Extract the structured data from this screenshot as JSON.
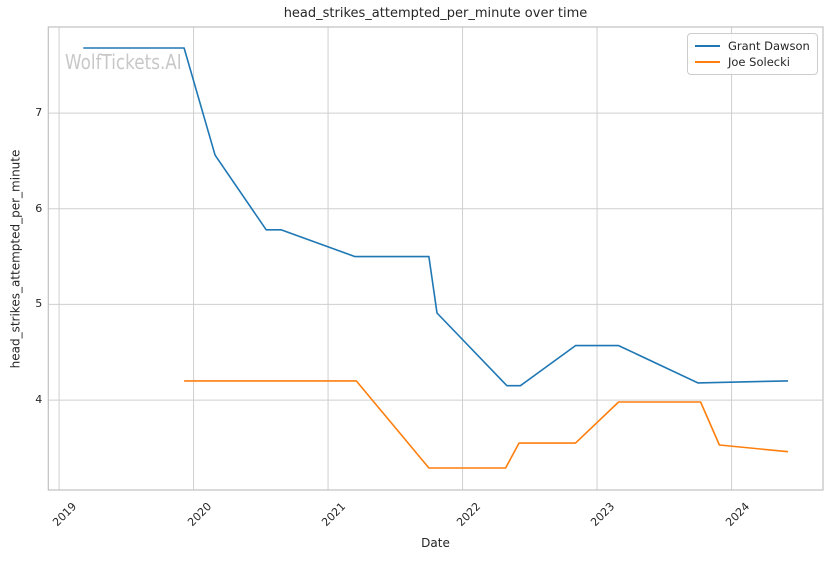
{
  "figure": {
    "watermark": "WolfTickets.AI"
  },
  "chart_data": {
    "type": "line",
    "title": "head_strikes_attempted_per_minute over time",
    "xlabel": "Date",
    "ylabel": "head_strikes_attempted_per_minute",
    "x_ticks": [
      2019,
      2020,
      2021,
      2022,
      2023,
      2024
    ],
    "y_ticks": [
      4,
      5,
      6,
      7
    ],
    "xlim": [
      2018.92,
      2024.68
    ],
    "ylim": [
      3.06,
      7.9
    ],
    "grid": true,
    "legend_position": "upper right",
    "series": [
      {
        "name": "Grant Dawson",
        "color": "#1f77b4",
        "points": [
          [
            2019.18,
            7.68
          ],
          [
            2019.93,
            7.68
          ],
          [
            2020.16,
            6.56
          ],
          [
            2020.54,
            5.78
          ],
          [
            2020.65,
            5.78
          ],
          [
            2021.2,
            5.5
          ],
          [
            2021.75,
            5.5
          ],
          [
            2021.81,
            4.91
          ],
          [
            2022.33,
            4.15
          ],
          [
            2022.43,
            4.15
          ],
          [
            2022.84,
            4.57
          ],
          [
            2023.16,
            4.57
          ],
          [
            2023.75,
            4.18
          ],
          [
            2024.42,
            4.2
          ]
        ]
      },
      {
        "name": "Joe Solecki",
        "color": "#ff7f0e",
        "points": [
          [
            2019.93,
            4.2
          ],
          [
            2021.21,
            4.2
          ],
          [
            2021.75,
            3.29
          ],
          [
            2022.32,
            3.29
          ],
          [
            2022.42,
            3.55
          ],
          [
            2022.84,
            3.55
          ],
          [
            2023.16,
            3.98
          ],
          [
            2023.77,
            3.98
          ],
          [
            2023.91,
            3.53
          ],
          [
            2024.42,
            3.46
          ]
        ]
      }
    ]
  },
  "colors": {
    "grid": "#cfcfcf",
    "spine": "#c0c0c0",
    "text": "#262626",
    "watermark": "#c8c8c8",
    "background": "#ffffff"
  }
}
